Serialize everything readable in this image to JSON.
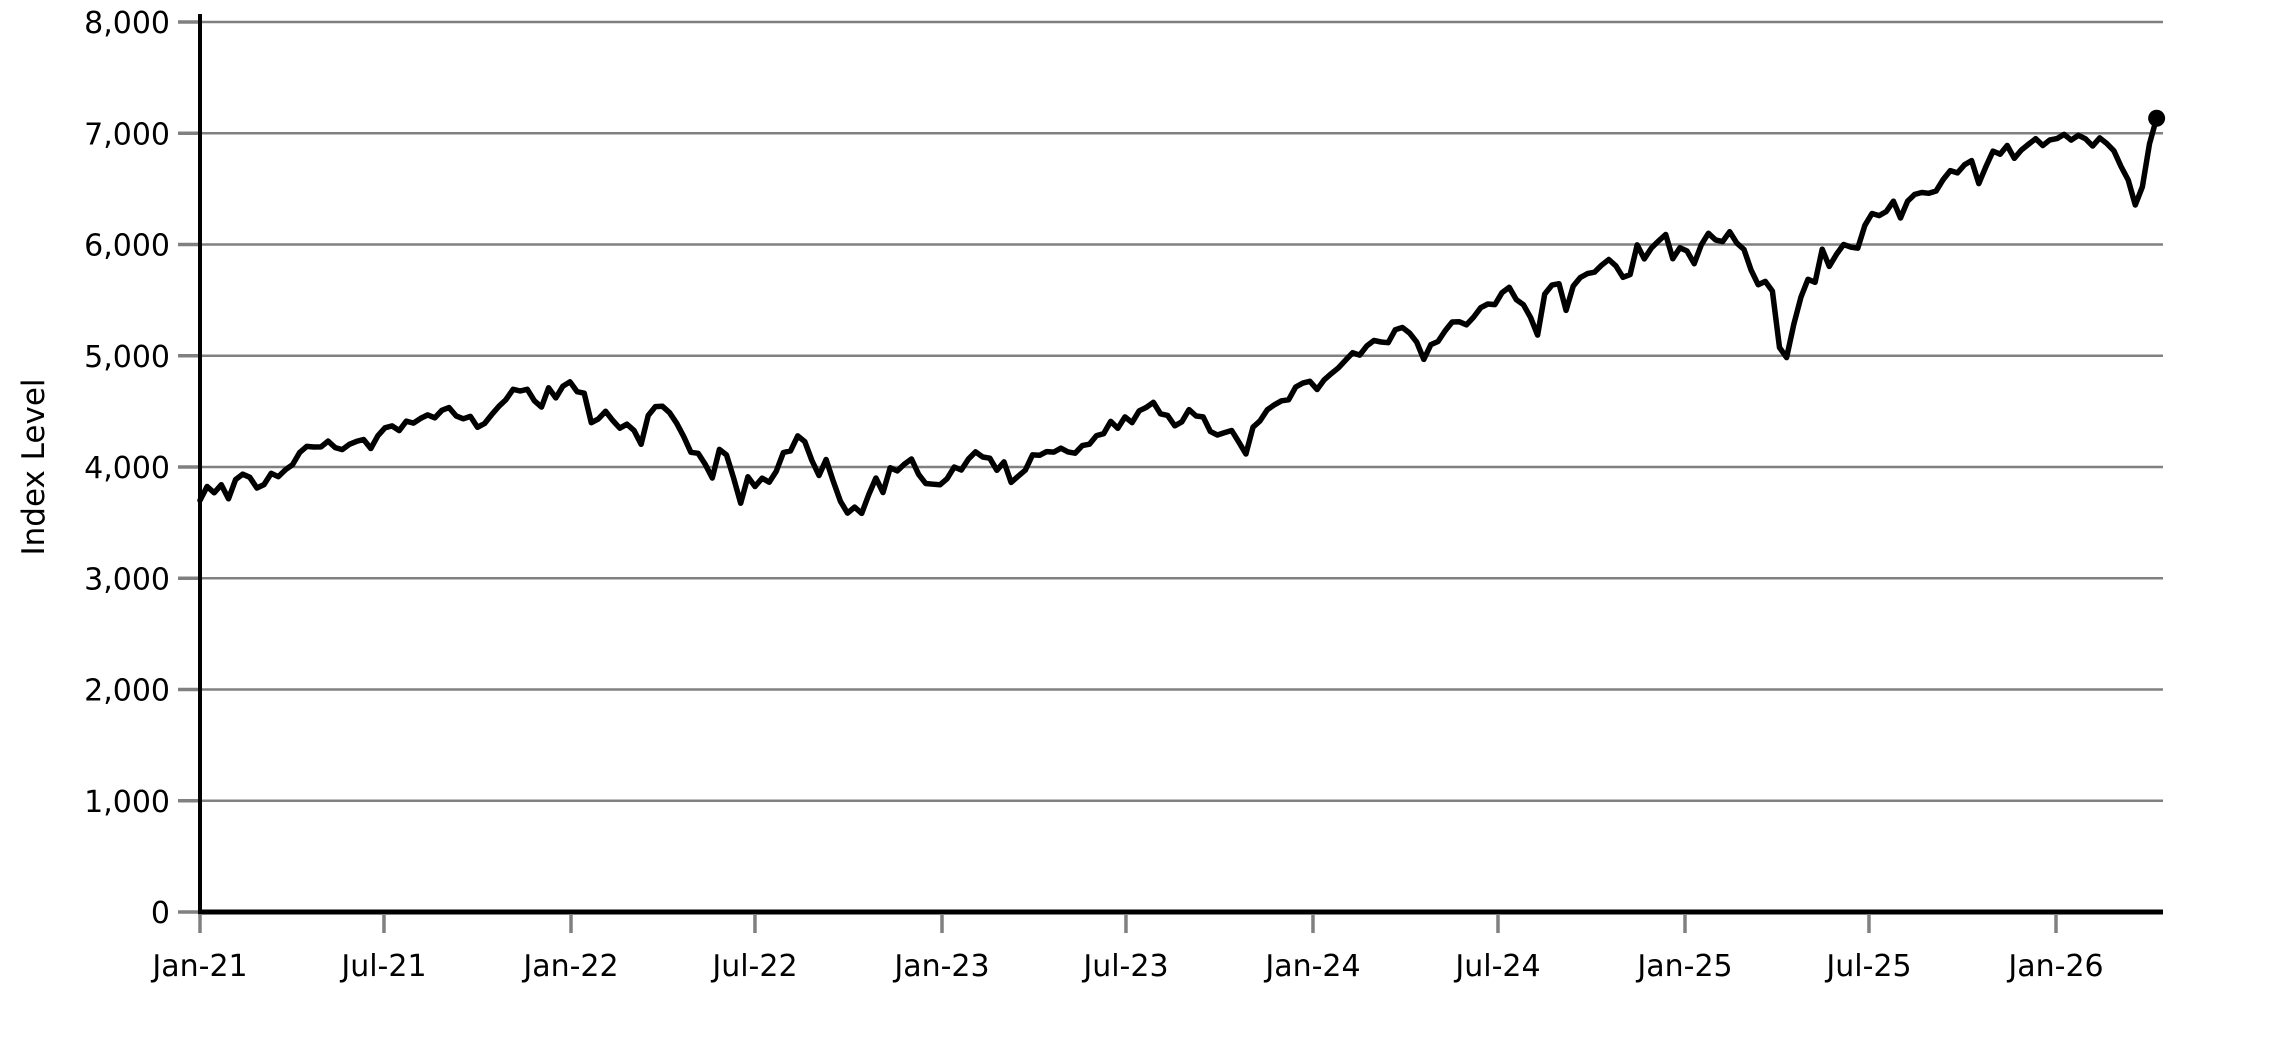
{
  "chart_data": {
    "type": "line",
    "title": "",
    "xlabel": "",
    "ylabel": "Index Level",
    "ylim": [
      0,
      8000
    ],
    "grid": "horizontal",
    "legend": "none",
    "colors": {
      "line": "#000000",
      "grid": "#808080",
      "tick": "#808080",
      "axis": "#000000",
      "background": "#ffffff",
      "label": "#000000"
    },
    "y_ticks": [
      {
        "label": "0",
        "value": 0
      },
      {
        "label": "1,000",
        "value": 1000
      },
      {
        "label": "2,000",
        "value": 2000
      },
      {
        "label": "3,000",
        "value": 3000
      },
      {
        "label": "4,000",
        "value": 4000
      },
      {
        "label": "5,000",
        "value": 5000
      },
      {
        "label": "6,000",
        "value": 6000
      },
      {
        "label": "7,000",
        "value": 7000
      },
      {
        "label": "8,000",
        "value": 8000
      }
    ],
    "x_ticks": [
      {
        "label": "Jan-21",
        "day": 0
      },
      {
        "label": "Jul-21",
        "day": 181
      },
      {
        "label": "Jan-22",
        "day": 365
      },
      {
        "label": "Jul-22",
        "day": 546
      },
      {
        "label": "Jan-23",
        "day": 730
      },
      {
        "label": "Jul-23",
        "day": 911
      },
      {
        "label": "Jan-24",
        "day": 1095
      },
      {
        "label": "Jul-24",
        "day": 1277
      },
      {
        "label": "Jan-25",
        "day": 1461
      },
      {
        "label": "Jul-25",
        "day": 1642
      },
      {
        "label": "Jan-26",
        "day": 1826
      }
    ],
    "series": [
      {
        "name": "Index Level",
        "start_date": "2021-01-01",
        "interval_days": 7,
        "end_marker": true,
        "values": [
          3700,
          3825,
          3768,
          3841,
          3714,
          3887,
          3935,
          3907,
          3811,
          3842,
          3943,
          3913,
          3975,
          4020,
          4129,
          4185,
          4180,
          4181,
          4233,
          4174,
          4156,
          4204,
          4230,
          4247,
          4166,
          4281,
          4352,
          4369,
          4327,
          4412,
          4395,
          4437,
          4468,
          4442,
          4510,
          4535,
          4459,
          4433,
          4455,
          4357,
          4391,
          4471,
          4545,
          4605,
          4698,
          4683,
          4698,
          4595,
          4538,
          4712,
          4621,
          4726,
          4766,
          4677,
          4663,
          4398,
          4432,
          4501,
          4419,
          4349,
          4385,
          4329,
          4204,
          4463,
          4543,
          4546,
          4488,
          4393,
          4272,
          4132,
          4123,
          4024,
          3901,
          4158,
          4109,
          3901,
          3675,
          3912,
          3825,
          3899,
          3863,
          3962,
          4130,
          4145,
          4280,
          4228,
          4058,
          3924,
          4067,
          3873,
          3693,
          3586,
          3640,
          3583,
          3753,
          3901,
          3771,
          3993,
          3965,
          4026,
          4072,
          3934,
          3852,
          3845,
          3840,
          3895,
          3999,
          3973,
          4071,
          4136,
          4090,
          4079,
          3970,
          4046,
          3862,
          3917,
          3971,
          4109,
          4105,
          4138,
          4134,
          4169,
          4136,
          4124,
          4192,
          4205,
          4282,
          4299,
          4410,
          4348,
          4450,
          4399,
          4505,
          4536,
          4582,
          4478,
          4464,
          4370,
          4406,
          4516,
          4458,
          4450,
          4320,
          4288,
          4309,
          4328,
          4224,
          4117,
          4358,
          4415,
          4514,
          4559,
          4595,
          4604,
          4719,
          4754,
          4770,
          4697,
          4784,
          4840,
          4891,
          4959,
          5027,
          5006,
          5089,
          5137,
          5124,
          5117,
          5234,
          5254,
          5204,
          5123,
          4967,
          5100,
          5128,
          5223,
          5303,
          5305,
          5278,
          5347,
          5432,
          5465,
          5460,
          5567,
          5615,
          5505,
          5459,
          5346,
          5186,
          5554,
          5635,
          5648,
          5408,
          5626,
          5703,
          5738,
          5751,
          5815,
          5865,
          5808,
          5705,
          5729,
          5996,
          5871,
          5969,
          6032,
          6090,
          5872,
          5971,
          5942,
          5827,
          5997,
          6101,
          6041,
          6026,
          6115,
          6013,
          5955,
          5770,
          5639,
          5668,
          5581,
          5074,
          4983,
          5283,
          5525,
          5687,
          5660,
          5958,
          5803,
          5912,
          6000,
          5977,
          5968,
          6173,
          6279,
          6260,
          6297,
          6389,
          6238,
          6389,
          6450,
          6467,
          6460,
          6481,
          6584,
          6664,
          6644,
          6716,
          6754,
          6547,
          6699,
          6840,
          6812,
          6890,
          6775,
          6849,
          6902,
          6951,
          6890,
          6940,
          6952,
          6990,
          6938,
          6982,
          6950,
          6885,
          6958,
          6908,
          6842,
          6700,
          6580,
          6355,
          6520,
          6905,
          7135
        ]
      }
    ]
  }
}
